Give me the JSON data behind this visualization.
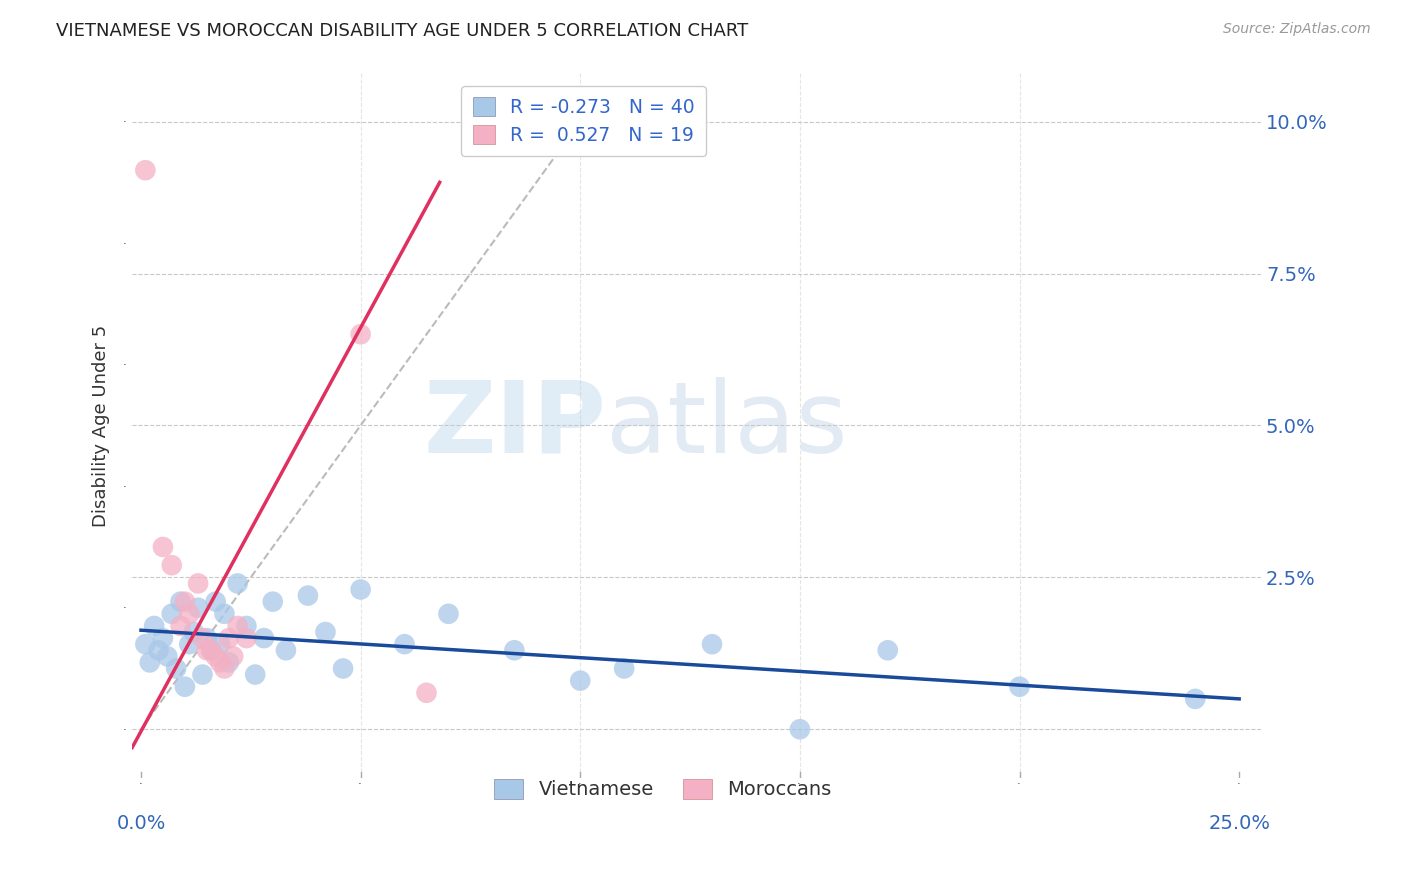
{
  "title": "VIETNAMESE VS MOROCCAN DISABILITY AGE UNDER 5 CORRELATION CHART",
  "source": "Source: ZipAtlas.com",
  "ylabel": "Disability Age Under 5",
  "ytick_values": [
    0.0,
    0.025,
    0.05,
    0.075,
    0.1
  ],
  "ytick_labels": [
    "",
    "2.5%",
    "5.0%",
    "7.5%",
    "10.0%"
  ],
  "xtick_values": [
    0.0,
    0.05,
    0.1,
    0.15,
    0.2,
    0.25
  ],
  "xtick_show": [
    0.0,
    0.25
  ],
  "xtick_show_labels": [
    "0.0%",
    "25.0%"
  ],
  "xlim": [
    -0.002,
    0.255
  ],
  "ylim": [
    -0.008,
    0.108
  ],
  "viet_color": "#a8c8e8",
  "moroc_color": "#f4b0c4",
  "viet_line_color": "#1a4a9c",
  "moroc_line_color": "#e03060",
  "diag_line_color": "#bbbbbb",
  "legend_label_viet": "R = -0.273   N = 40",
  "legend_label_moroc": "R =  0.527   N = 19",
  "watermark_zip": "ZIP",
  "watermark_atlas": "atlas",
  "viet_points": [
    [
      0.001,
      0.014
    ],
    [
      0.002,
      0.011
    ],
    [
      0.003,
      0.017
    ],
    [
      0.004,
      0.013
    ],
    [
      0.005,
      0.015
    ],
    [
      0.006,
      0.012
    ],
    [
      0.007,
      0.019
    ],
    [
      0.008,
      0.01
    ],
    [
      0.009,
      0.021
    ],
    [
      0.01,
      0.007
    ],
    [
      0.011,
      0.014
    ],
    [
      0.012,
      0.016
    ],
    [
      0.013,
      0.02
    ],
    [
      0.014,
      0.009
    ],
    [
      0.015,
      0.015
    ],
    [
      0.016,
      0.013
    ],
    [
      0.017,
      0.021
    ],
    [
      0.018,
      0.014
    ],
    [
      0.019,
      0.019
    ],
    [
      0.02,
      0.011
    ],
    [
      0.022,
      0.024
    ],
    [
      0.024,
      0.017
    ],
    [
      0.026,
      0.009
    ],
    [
      0.028,
      0.015
    ],
    [
      0.03,
      0.021
    ],
    [
      0.033,
      0.013
    ],
    [
      0.038,
      0.022
    ],
    [
      0.042,
      0.016
    ],
    [
      0.046,
      0.01
    ],
    [
      0.05,
      0.023
    ],
    [
      0.06,
      0.014
    ],
    [
      0.07,
      0.019
    ],
    [
      0.085,
      0.013
    ],
    [
      0.1,
      0.008
    ],
    [
      0.11,
      0.01
    ],
    [
      0.13,
      0.014
    ],
    [
      0.15,
      0.0
    ],
    [
      0.17,
      0.013
    ],
    [
      0.2,
      0.007
    ],
    [
      0.24,
      0.005
    ]
  ],
  "moroc_points": [
    [
      0.001,
      0.092
    ],
    [
      0.005,
      0.03
    ],
    [
      0.007,
      0.027
    ],
    [
      0.009,
      0.017
    ],
    [
      0.01,
      0.021
    ],
    [
      0.011,
      0.019
    ],
    [
      0.013,
      0.024
    ],
    [
      0.014,
      0.015
    ],
    [
      0.015,
      0.013
    ],
    [
      0.016,
      0.013
    ],
    [
      0.017,
      0.012
    ],
    [
      0.018,
      0.011
    ],
    [
      0.019,
      0.01
    ],
    [
      0.02,
      0.015
    ],
    [
      0.021,
      0.012
    ],
    [
      0.022,
      0.017
    ],
    [
      0.024,
      0.015
    ],
    [
      0.05,
      0.065
    ],
    [
      0.065,
      0.006
    ]
  ],
  "viet_line_x": [
    0.0,
    0.25
  ],
  "viet_line_y": [
    0.0163,
    0.005
  ],
  "moroc_line_x": [
    -0.002,
    0.068
  ],
  "moroc_line_y": [
    -0.003,
    0.09
  ],
  "diag_line_x": [
    0.0,
    0.1
  ],
  "diag_line_y": [
    0.0,
    0.1
  ]
}
